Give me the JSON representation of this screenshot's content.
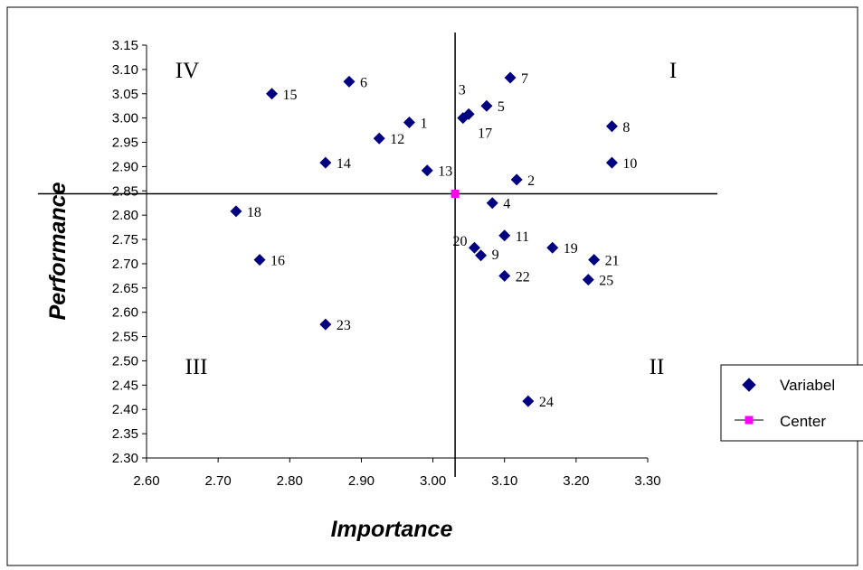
{
  "chart_data": {
    "type": "scatter",
    "xlabel": "Importance",
    "ylabel": "Performance",
    "xlim": [
      2.6,
      3.3
    ],
    "ylim": [
      2.3,
      3.15
    ],
    "x_ticks": [
      "2.60",
      "2.70",
      "2.80",
      "2.90",
      "3.00",
      "3.10",
      "3.20",
      "3.30"
    ],
    "y_ticks": [
      "2.30",
      "2.35",
      "2.40",
      "2.45",
      "2.50",
      "2.55",
      "2.60",
      "2.65",
      "2.70",
      "2.75",
      "2.80",
      "2.85",
      "2.90",
      "2.95",
      "3.00",
      "3.05",
      "3.10",
      "3.15"
    ],
    "grid": false,
    "legend_position": "right",
    "series": [
      {
        "name": "Variabel",
        "marker": "diamond",
        "color": "#000080",
        "points": [
          {
            "label": "1",
            "x": 2.967,
            "y": 2.991
          },
          {
            "label": "2",
            "x": 3.117,
            "y": 2.873
          },
          {
            "label": "3",
            "x": 3.042,
            "y": 3.0
          },
          {
            "label": "4",
            "x": 3.083,
            "y": 2.825
          },
          {
            "label": "5",
            "x": 3.075,
            "y": 3.025
          },
          {
            "label": "6",
            "x": 2.883,
            "y": 3.075
          },
          {
            "label": "7",
            "x": 3.108,
            "y": 3.083
          },
          {
            "label": "8",
            "x": 3.25,
            "y": 2.983
          },
          {
            "label": "9",
            "x": 3.067,
            "y": 2.717
          },
          {
            "label": "10",
            "x": 3.25,
            "y": 2.908
          },
          {
            "label": "11",
            "x": 3.1,
            "y": 2.758
          },
          {
            "label": "12",
            "x": 2.925,
            "y": 2.958
          },
          {
            "label": "13",
            "x": 2.992,
            "y": 2.892
          },
          {
            "label": "14",
            "x": 2.85,
            "y": 2.908
          },
          {
            "label": "15",
            "x": 2.775,
            "y": 3.05
          },
          {
            "label": "16",
            "x": 2.758,
            "y": 2.708
          },
          {
            "label": "17",
            "x": 3.05,
            "y": 3.008
          },
          {
            "label": "18",
            "x": 2.725,
            "y": 2.808
          },
          {
            "label": "19",
            "x": 3.167,
            "y": 2.733
          },
          {
            "label": "20",
            "x": 3.058,
            "y": 2.733
          },
          {
            "label": "21",
            "x": 3.225,
            "y": 2.708
          },
          {
            "label": "22",
            "x": 3.1,
            "y": 2.675
          },
          {
            "label": "23",
            "x": 2.85,
            "y": 2.575
          },
          {
            "label": "24",
            "x": 3.133,
            "y": 2.417
          },
          {
            "label": "25",
            "x": 3.217,
            "y": 2.667
          }
        ]
      },
      {
        "name": "Center",
        "marker": "square",
        "color": "#FF00FF",
        "points": [
          {
            "label": "",
            "x": 3.031,
            "y": 2.844
          }
        ]
      }
    ],
    "quadrants": [
      "I",
      "II",
      "III",
      "IV"
    ]
  }
}
